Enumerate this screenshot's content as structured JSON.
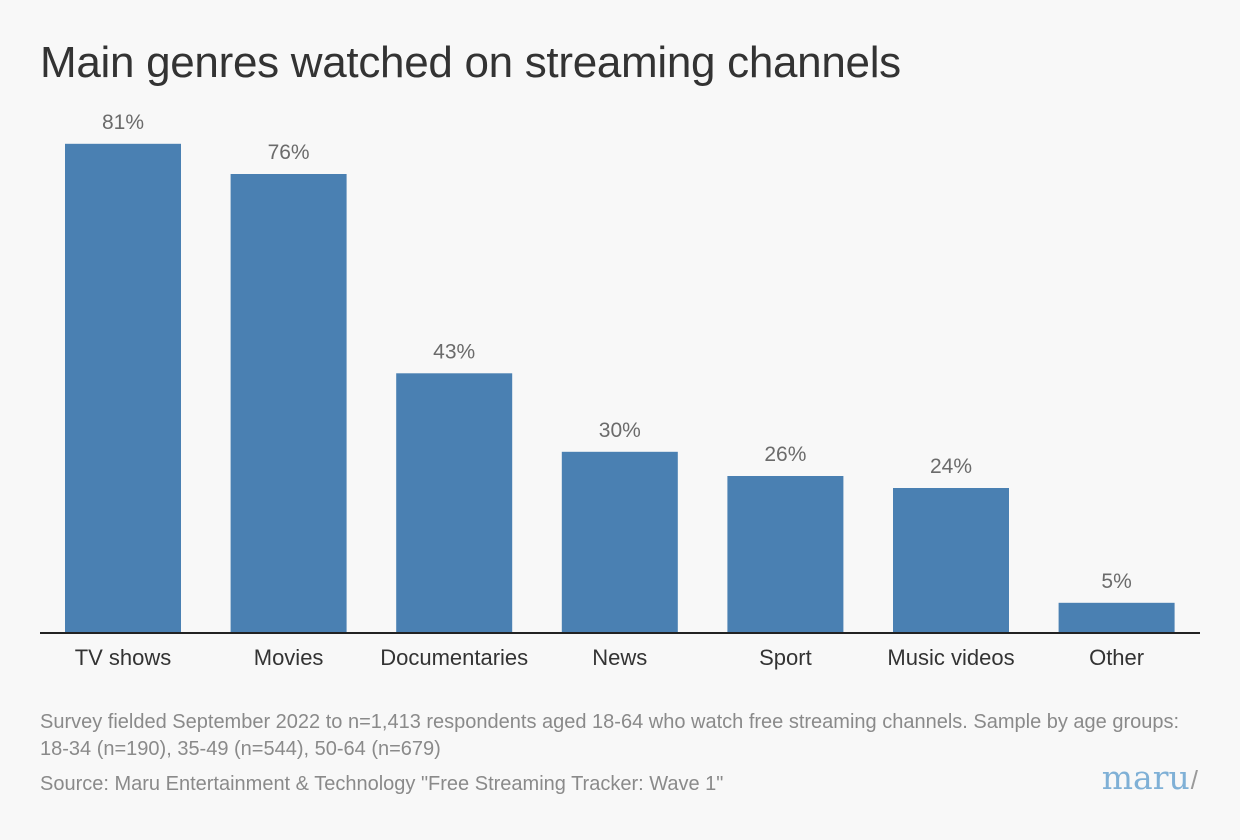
{
  "title": "Main genres watched on streaming channels",
  "chart_data": {
    "type": "bar",
    "title": "Main genres watched on streaming channels",
    "categories": [
      "TV shows",
      "Movies",
      "Documentaries",
      "News",
      "Sport",
      "Music videos",
      "Other"
    ],
    "values": [
      81,
      76,
      43,
      30,
      26,
      24,
      5
    ],
    "value_labels": [
      "81%",
      "76%",
      "43%",
      "30%",
      "26%",
      "24%",
      "5%"
    ],
    "unit": "%",
    "ylim": [
      0,
      100
    ],
    "grid": false,
    "legend": "none",
    "bar_color": "#4a80b2"
  },
  "footnote": "Survey fielded September 2022 to n=1,413 respondents aged 18-64 who watch free streaming channels. Sample by age groups: 18-34 (n=190), 35-49 (n=544), 50-64 (n=679)",
  "source": "Source: Maru Entertainment & Technology \"Free Streaming Tracker: Wave 1\"",
  "logo": {
    "text": "maru",
    "suffix": "/",
    "color": "#7fb0d6"
  },
  "colors": {
    "background": "#f8f8f8",
    "title": "#333333",
    "value_label": "#6b6b6b",
    "axis": "#222222",
    "note": "#8a8a8a"
  }
}
